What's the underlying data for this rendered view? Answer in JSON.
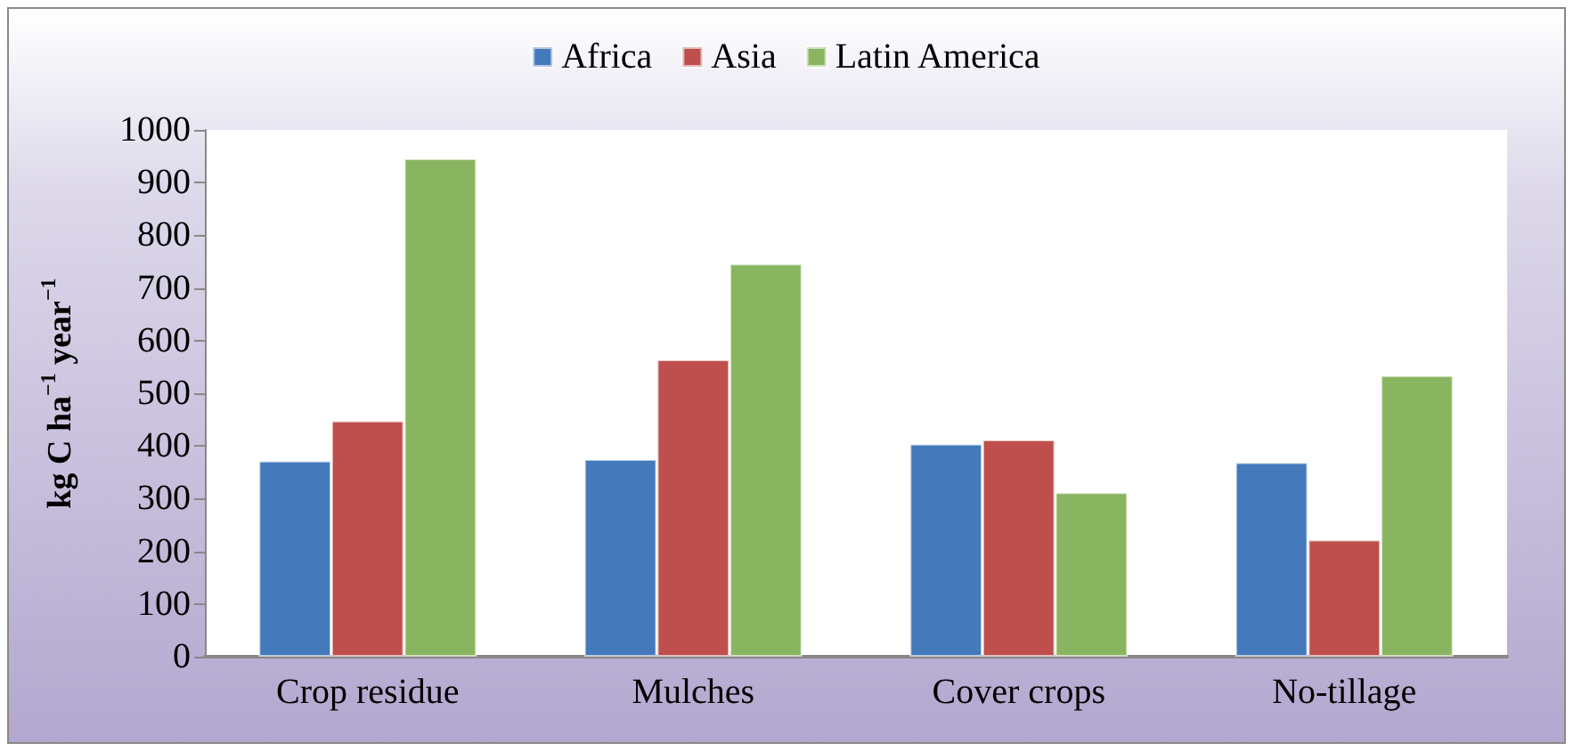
{
  "chart_data": {
    "type": "bar",
    "ylabel": "kg C ha$^{−1}$ year$^{−1}$",
    "categories": [
      "Crop residue",
      "Mulches",
      "Cover crops",
      "No-tillage"
    ],
    "series": [
      {
        "name": "Africa",
        "color": "#4479bb",
        "values": [
          372,
          375,
          404,
          369
        ]
      },
      {
        "name": "Asia",
        "color": "#be4f4d",
        "values": [
          448,
          564,
          412,
          222
        ]
      },
      {
        "name": "Latin America",
        "color": "#8ab560",
        "values": [
          946,
          746,
          312,
          534
        ]
      }
    ],
    "ylim": [
      0,
      1000
    ],
    "yticks": [
      0,
      100,
      200,
      300,
      400,
      500,
      600,
      700,
      800,
      900,
      1000
    ],
    "grid": false,
    "legend": "top"
  }
}
